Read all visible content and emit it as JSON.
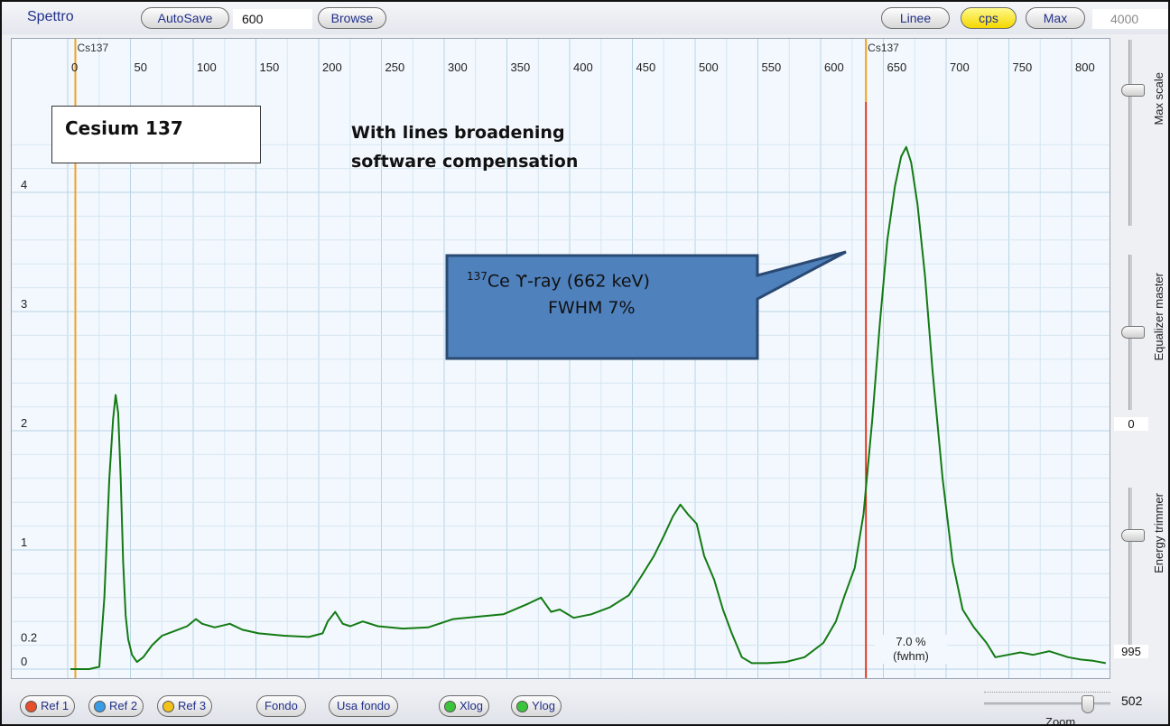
{
  "toolbar": {
    "app_title": "Spettro",
    "autosave_label": "AutoSave",
    "autosave_value": "600",
    "browse_label": "Browse",
    "linee_label": "Linee",
    "cps_label": "cps",
    "max_label": "Max",
    "max_value": "4000"
  },
  "side_panel": {
    "max_scale_label": "Max scale",
    "max_scale_level": 0.27,
    "equalizer_label": "Equalizer master",
    "equalizer_value": "0",
    "equalizer_level": 0.5,
    "energy_trimmer_label": "Energy trimmer",
    "energy_trimmer_value": "995",
    "energy_trimmer_level": 0.3
  },
  "bottom": {
    "ref1": "Ref 1",
    "ref2": "Ref 2",
    "ref3": "Ref 3",
    "fondo": "Fondo",
    "usa_fondo": "Usa fondo",
    "xlog": "Xlog",
    "ylog": "Ylog",
    "zoom_label": "Zoom",
    "zoom_value": "502",
    "zoom_level": 0.82
  },
  "annotations": {
    "box_title": "Cesium 137",
    "note_line1": "With lines broadening",
    "note_line2": "software compensation",
    "callout_sup": "137",
    "callout_line1": "Ce ϒ-ray  (662 keV)",
    "callout_line2": "FWHM  7%",
    "fwhm_value": "7.0 %",
    "fwhm_unit": "(fwhm)"
  },
  "colors": {
    "spectrum": "#137a13",
    "marker": "#f2a21c",
    "fwhm_line": "#e02020",
    "grid": "#b8d4e6",
    "callout_fill": "#4f81bd",
    "callout_border": "#2a4a73",
    "led_ref1": "#e8502a",
    "led_ref2": "#3a9ce6",
    "led_ref3": "#f2c21a",
    "led_green": "#3cc43c"
  },
  "chart_data": {
    "type": "line",
    "x_ticks": [
      "0",
      "50",
      "100",
      "150",
      "200",
      "250",
      "300",
      "350",
      "400",
      "450",
      "500",
      "550",
      "600",
      "650",
      "700",
      "750",
      "800"
    ],
    "y_ticks": [
      "0",
      "0.2",
      "1",
      "2",
      "3",
      "4"
    ],
    "xlim": [
      0,
      800
    ],
    "ylim": [
      0,
      4.4
    ],
    "markers": [
      {
        "label": "Cs137",
        "x": 32
      },
      {
        "label": "Cs137",
        "x": 662
      }
    ],
    "fwhm_marker_x": 662,
    "series": [
      {
        "points": [
          [
            -5,
            0
          ],
          [
            10,
            0
          ],
          [
            18,
            0.02
          ],
          [
            22,
            0.6
          ],
          [
            26,
            1.6
          ],
          [
            29,
            2.1
          ],
          [
            31,
            2.3
          ],
          [
            33,
            2.15
          ],
          [
            35,
            1.6
          ],
          [
            37,
            0.9
          ],
          [
            39,
            0.45
          ],
          [
            41,
            0.25
          ],
          [
            44,
            0.12
          ],
          [
            48,
            0.06
          ],
          [
            53,
            0.1
          ],
          [
            60,
            0.2
          ],
          [
            68,
            0.28
          ],
          [
            78,
            0.32
          ],
          [
            88,
            0.36
          ],
          [
            95,
            0.42
          ],
          [
            100,
            0.38
          ],
          [
            110,
            0.35
          ],
          [
            122,
            0.38
          ],
          [
            132,
            0.33
          ],
          [
            145,
            0.3
          ],
          [
            165,
            0.28
          ],
          [
            185,
            0.27
          ],
          [
            196,
            0.3
          ],
          [
            200,
            0.4
          ],
          [
            206,
            0.48
          ],
          [
            212,
            0.38
          ],
          [
            218,
            0.36
          ],
          [
            228,
            0.4
          ],
          [
            240,
            0.36
          ],
          [
            260,
            0.34
          ],
          [
            280,
            0.35
          ],
          [
            300,
            0.42
          ],
          [
            320,
            0.44
          ],
          [
            340,
            0.46
          ],
          [
            360,
            0.55
          ],
          [
            370,
            0.6
          ],
          [
            378,
            0.48
          ],
          [
            385,
            0.5
          ],
          [
            396,
            0.43
          ],
          [
            410,
            0.46
          ],
          [
            425,
            0.52
          ],
          [
            440,
            0.62
          ],
          [
            450,
            0.78
          ],
          [
            460,
            0.95
          ],
          [
            468,
            1.12
          ],
          [
            475,
            1.28
          ],
          [
            481,
            1.38
          ],
          [
            487,
            1.3
          ],
          [
            494,
            1.22
          ],
          [
            500,
            0.95
          ],
          [
            508,
            0.75
          ],
          [
            515,
            0.5
          ],
          [
            522,
            0.3
          ],
          [
            530,
            0.1
          ],
          [
            538,
            0.05
          ],
          [
            550,
            0.05
          ],
          [
            565,
            0.06
          ],
          [
            580,
            0.1
          ],
          [
            595,
            0.22
          ],
          [
            605,
            0.4
          ],
          [
            612,
            0.62
          ],
          [
            620,
            0.85
          ],
          [
            627,
            1.3
          ],
          [
            634,
            2.1
          ],
          [
            640,
            2.9
          ],
          [
            646,
            3.6
          ],
          [
            652,
            4.05
          ],
          [
            657,
            4.3
          ],
          [
            661,
            4.38
          ],
          [
            665,
            4.25
          ],
          [
            670,
            3.9
          ],
          [
            676,
            3.3
          ],
          [
            682,
            2.5
          ],
          [
            690,
            1.6
          ],
          [
            698,
            0.9
          ],
          [
            706,
            0.5
          ],
          [
            715,
            0.35
          ],
          [
            725,
            0.22
          ],
          [
            732,
            0.1
          ],
          [
            742,
            0.12
          ],
          [
            752,
            0.14
          ],
          [
            762,
            0.12
          ],
          [
            775,
            0.15
          ],
          [
            790,
            0.1
          ],
          [
            800,
            0.08
          ],
          [
            810,
            0.07
          ],
          [
            820,
            0.05
          ]
        ]
      }
    ]
  }
}
